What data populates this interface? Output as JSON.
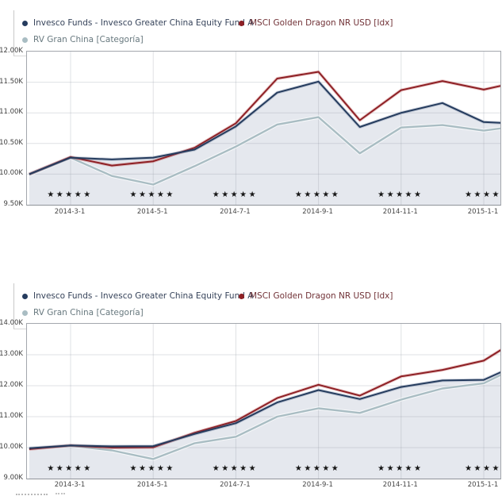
{
  "legend": {
    "fund": "Invesco Funds - Invesco Greater China Equity Fund A",
    "index": "MSCI Golden Dragon NR USD [Idx]",
    "category": "RV Gran China [Categoría]"
  },
  "colors": {
    "fund": "#253c5e",
    "index": "#8e2025",
    "category": "#a9bdc3",
    "fund_halo": "rgba(70,90,130,0.25)",
    "index_halo": "rgba(190,80,80,0.30)",
    "category_halo": "rgba(255,255,255,0.70)",
    "area_fill": "#e5e8ee",
    "grid": "rgba(150,155,165,0.30)",
    "plot_border": "#a3a7ad",
    "stars": "#161616"
  },
  "star_glyph": "★",
  "chart_data": [
    {
      "type": "line",
      "title": "",
      "xlabel": "",
      "ylabel": "",
      "grid": true,
      "legend_position": "top",
      "ylim": [
        9500,
        12000
      ],
      "y_tick_values": [
        12000,
        11500,
        11000,
        10500,
        10000,
        9500
      ],
      "y_tick_labels": [
        "12.00K",
        "11.50K",
        "11.00K",
        "10.50K",
        "10.00K",
        "9.50K"
      ],
      "x": [
        "2014-2-1",
        "2014-3-1",
        "2014-4-1",
        "2014-5-1",
        "2014-6-1",
        "2014-7-1",
        "2014-8-1",
        "2014-9-1",
        "2014-10-1",
        "2014-11-1",
        "2014-12-1",
        "2015-1-1",
        "2015-2-1"
      ],
      "x_tick_labels": [
        "2014-3-1",
        "2014-5-1",
        "2014-7-1",
        "2014-9-1",
        "2014-11-1",
        "2015-1-1"
      ],
      "star_ratings": [
        5,
        5,
        5,
        5,
        5,
        4
      ],
      "series": [
        {
          "key": "fund",
          "name": "Invesco Funds - Invesco Greater China Equity Fund A",
          "values": [
            10000,
            10270,
            10240,
            10270,
            10400,
            10780,
            11330,
            11510,
            10770,
            11000,
            11160,
            10850,
            10820
          ]
        },
        {
          "key": "index",
          "name": "MSCI Golden Dragon NR USD [Idx]",
          "values": [
            10000,
            10280,
            10140,
            10210,
            10430,
            10830,
            11560,
            11670,
            10880,
            11370,
            11520,
            11380,
            11530
          ]
        },
        {
          "key": "category",
          "name": "RV Gran China [Categoría]",
          "values": [
            9990,
            10270,
            9970,
            9830,
            10130,
            10450,
            10810,
            10930,
            10340,
            10760,
            10800,
            10710,
            10800
          ]
        }
      ]
    },
    {
      "type": "line",
      "title": "",
      "xlabel": "",
      "ylabel": "",
      "grid": true,
      "legend_position": "top",
      "ylim": [
        9000,
        14000
      ],
      "y_tick_values": [
        14000,
        13000,
        12000,
        11000,
        10000,
        9000
      ],
      "y_tick_labels": [
        "14.00K",
        "13.00K",
        "12.00K",
        "11.00K",
        "10.00K",
        "9.00K"
      ],
      "x": [
        "2014-2-1",
        "2014-3-1",
        "2014-4-1",
        "2014-5-1",
        "2014-6-1",
        "2014-7-1",
        "2014-8-1",
        "2014-9-1",
        "2014-10-1",
        "2014-11-1",
        "2014-12-1",
        "2015-1-1",
        "2015-2-1"
      ],
      "x_tick_labels": [
        "2014-3-1",
        "2014-5-1",
        "2014-7-1",
        "2014-9-1",
        "2014-11-1",
        "2015-1-1"
      ],
      "star_ratings": [
        5,
        5,
        5,
        5,
        5,
        4
      ],
      "series": [
        {
          "key": "fund",
          "name": "Invesco Funds - Invesco Greater China Equity Fund A",
          "values": [
            9980,
            10070,
            10040,
            10050,
            10440,
            10790,
            11460,
            11860,
            11570,
            11960,
            12170,
            12190,
            12790
          ]
        },
        {
          "key": "index",
          "name": "MSCI Golden Dragon NR USD [Idx]",
          "values": [
            9950,
            10070,
            10000,
            10010,
            10480,
            10860,
            11600,
            12030,
            11680,
            12300,
            12510,
            12810,
            13640
          ]
        },
        {
          "key": "category",
          "name": "RV Gran China [Categoría]",
          "values": [
            9970,
            10060,
            9910,
            9630,
            10140,
            10350,
            11000,
            11270,
            11120,
            11550,
            11910,
            12080,
            12730
          ]
        }
      ]
    }
  ]
}
